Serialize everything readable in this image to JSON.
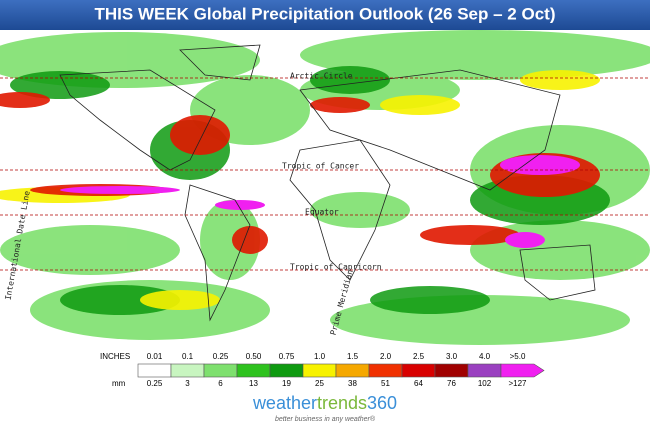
{
  "title": "THIS WEEK Global Precipitation Outlook (26 Sep – 2 Oct)",
  "map_labels": {
    "arctic_circle": "Arctic Circle",
    "tropic_of_cancer": "Tropic of Cancer",
    "equator": "Equator",
    "tropic_of_capricorn": "Tropic of Capricorn",
    "date_line": "International Date Line",
    "prime_meridian": "Prime Meridian"
  },
  "legend": {
    "inches_label": "INCHES",
    "mm_label": "mm",
    "inches": [
      "0.01",
      "0.1",
      "0.25",
      "0.50",
      "0.75",
      "1.0",
      "1.5",
      "2.0",
      "2.5",
      "3.0",
      "4.0",
      ">5.0"
    ],
    "mm": [
      "0.25",
      "3",
      "6",
      "13",
      "19",
      "25",
      "38",
      "51",
      "64",
      "76",
      "102",
      ">127"
    ],
    "colors": [
      "#ffffff",
      "#c8f5c0",
      "#7ee06e",
      "#2ec21e",
      "#0e9a10",
      "#f7f200",
      "#f5a800",
      "#f03000",
      "#d80000",
      "#a00000",
      "#9a40c0",
      "#f020f0"
    ]
  },
  "brand": {
    "name_a": "weather",
    "name_b": "trends",
    "name_c": "360",
    "tagline": "better business in any weather®"
  }
}
